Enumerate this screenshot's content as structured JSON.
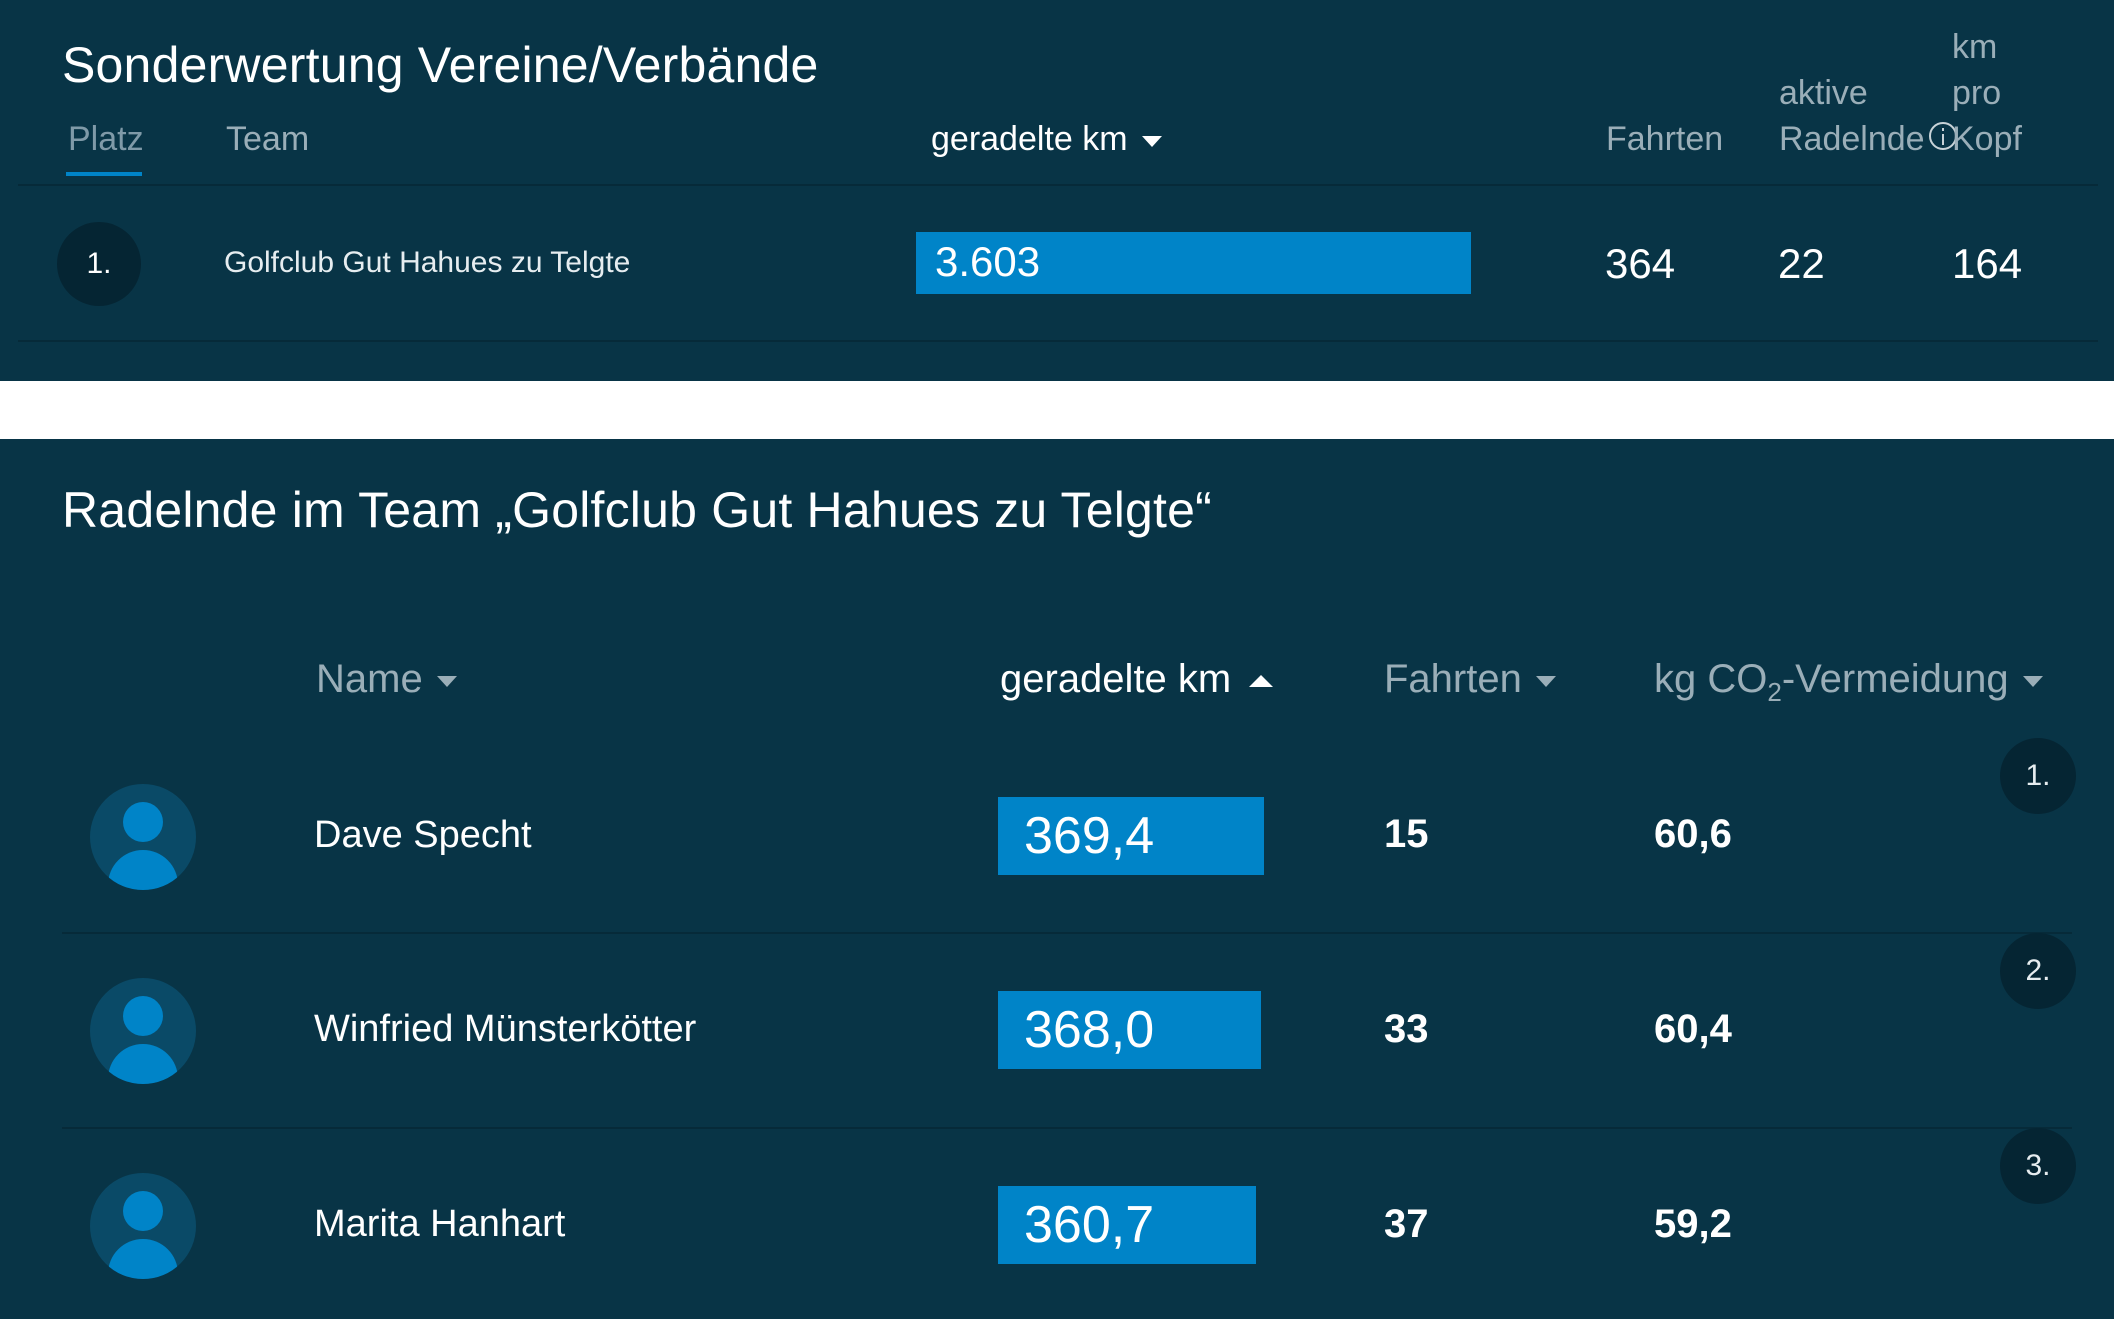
{
  "club_ranking": {
    "title": "Sonderwertung Vereine/Verbände",
    "columns": {
      "rank": "Platz",
      "team": "Team",
      "km": "geradelte km",
      "trips": "Fahrten",
      "active_riders": [
        "aktive",
        "Radelnde"
      ],
      "km_per_head": [
        "km",
        "pro",
        "Kopf"
      ]
    },
    "rows": [
      {
        "rank": "1.",
        "team": "Golfclub Gut Hahues zu Telgte",
        "km": "3.603",
        "trips": "364",
        "active_riders": "22",
        "km_per_head": "164"
      }
    ]
  },
  "team_members": {
    "title": "Radelnde im Team „Golfclub Gut Hahues zu Telgte“",
    "columns": {
      "name": "Name",
      "km": "geradelte km",
      "trips": "Fahrten",
      "co2_prefix": "kg CO",
      "co2_sub": "2",
      "co2_suffix": "-Vermeidung"
    },
    "rows": [
      {
        "rank": "1.",
        "name": "Dave Specht",
        "km": "369,4",
        "trips": "15",
        "co2": "60,6",
        "bar_fraction": 1.0
      },
      {
        "rank": "2.",
        "name": "Winfried Münsterkötter",
        "km": "368,0",
        "trips": "33",
        "co2": "60,4",
        "bar_fraction": 0.996
      },
      {
        "rank": "3.",
        "name": "Marita Hanhart",
        "km": "360,7",
        "trips": "37",
        "co2": "59,2",
        "bar_fraction": 0.976
      }
    ]
  },
  "colors": {
    "panel_bg": "#083446",
    "bar": "#0084c8",
    "rank_bg": "#052533",
    "header_text": "#9aaeb8"
  },
  "icons": {
    "sort_desc": "caret-down-icon",
    "sort_asc": "caret-up-icon",
    "info": "info-icon",
    "avatar": "user-avatar-icon"
  }
}
